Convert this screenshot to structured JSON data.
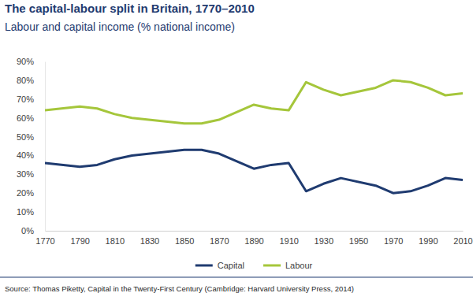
{
  "chart_data": {
    "type": "line",
    "title": "The capital-labour split in Britain, 1770–2010",
    "subtitle": "Labour and capital income (% national income)",
    "source": "Source: Thomas Piketty, Capital in the Twenty-First Century (Cambridge: Harvard University Press, 2014)",
    "x": [
      1770,
      1790,
      1800,
      1810,
      1820,
      1850,
      1860,
      1870,
      1890,
      1900,
      1910,
      1920,
      1930,
      1940,
      1960,
      1970,
      1980,
      1990,
      2000,
      2010
    ],
    "series": [
      {
        "name": "Capital",
        "color": "#1f3b70",
        "values": [
          36,
          34,
          35,
          38,
          40,
          43,
          43,
          41,
          33,
          35,
          36,
          21,
          25,
          28,
          24,
          20,
          21,
          24,
          28,
          27
        ]
      },
      {
        "name": "Labour",
        "color": "#a5c63b",
        "values": [
          64,
          66,
          65,
          62,
          60,
          57,
          57,
          59,
          67,
          65,
          64,
          79,
          75,
          72,
          76,
          80,
          79,
          76,
          72,
          73
        ]
      }
    ],
    "xlim": [
      1770,
      2010
    ],
    "xticks": [
      1770,
      1790,
      1810,
      1830,
      1850,
      1870,
      1890,
      1910,
      1930,
      1950,
      1970,
      1990,
      2010
    ],
    "ylim": [
      0,
      90
    ],
    "yticks": [
      {
        "value": 0,
        "label": "0%"
      },
      {
        "value": 10,
        "label": "10%"
      },
      {
        "value": 20,
        "label": "20%"
      },
      {
        "value": 30,
        "label": "30%"
      },
      {
        "value": 40,
        "label": "40%"
      },
      {
        "value": 50,
        "label": "50%"
      },
      {
        "value": 60,
        "label": "60%"
      },
      {
        "value": 70,
        "label": "70%"
      },
      {
        "value": 80,
        "label": "80%"
      },
      {
        "value": 90,
        "label": "90%"
      }
    ],
    "grid": false,
    "legend": "bottom"
  }
}
